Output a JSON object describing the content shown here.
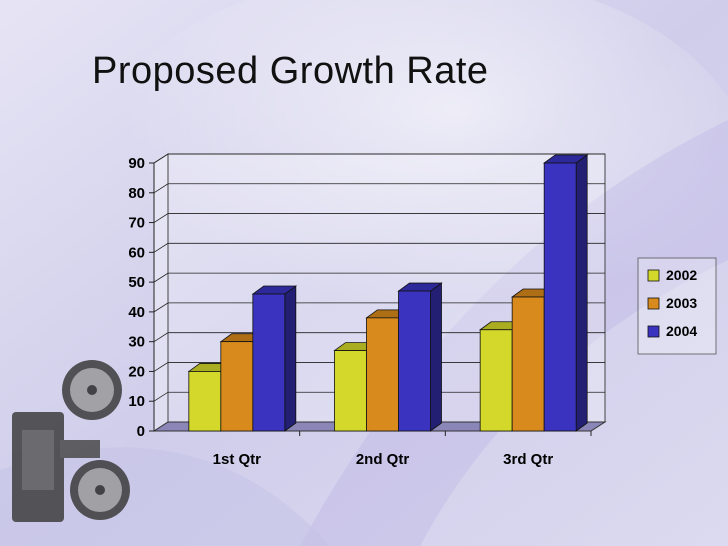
{
  "slide": {
    "title": "Proposed Growth Rate"
  },
  "colors": {
    "series": [
      "#d4d82a",
      "#d88a1c",
      "#3a33c0"
    ]
  },
  "chart_data": {
    "type": "bar",
    "title": "",
    "xlabel": "",
    "ylabel": "",
    "categories": [
      "1st Qtr",
      "2nd Qtr",
      "3rd Qtr"
    ],
    "series": [
      {
        "name": "2002",
        "values": [
          20,
          27,
          34
        ]
      },
      {
        "name": "2003",
        "values": [
          30,
          38,
          45
        ]
      },
      {
        "name": "2004",
        "values": [
          46,
          47,
          90
        ]
      }
    ],
    "ylim": [
      0,
      90
    ],
    "yticks": [
      0,
      10,
      20,
      30,
      40,
      50,
      60,
      70,
      80,
      90
    ],
    "grid": true,
    "legend": "right",
    "style": "3d-clustered-column"
  }
}
